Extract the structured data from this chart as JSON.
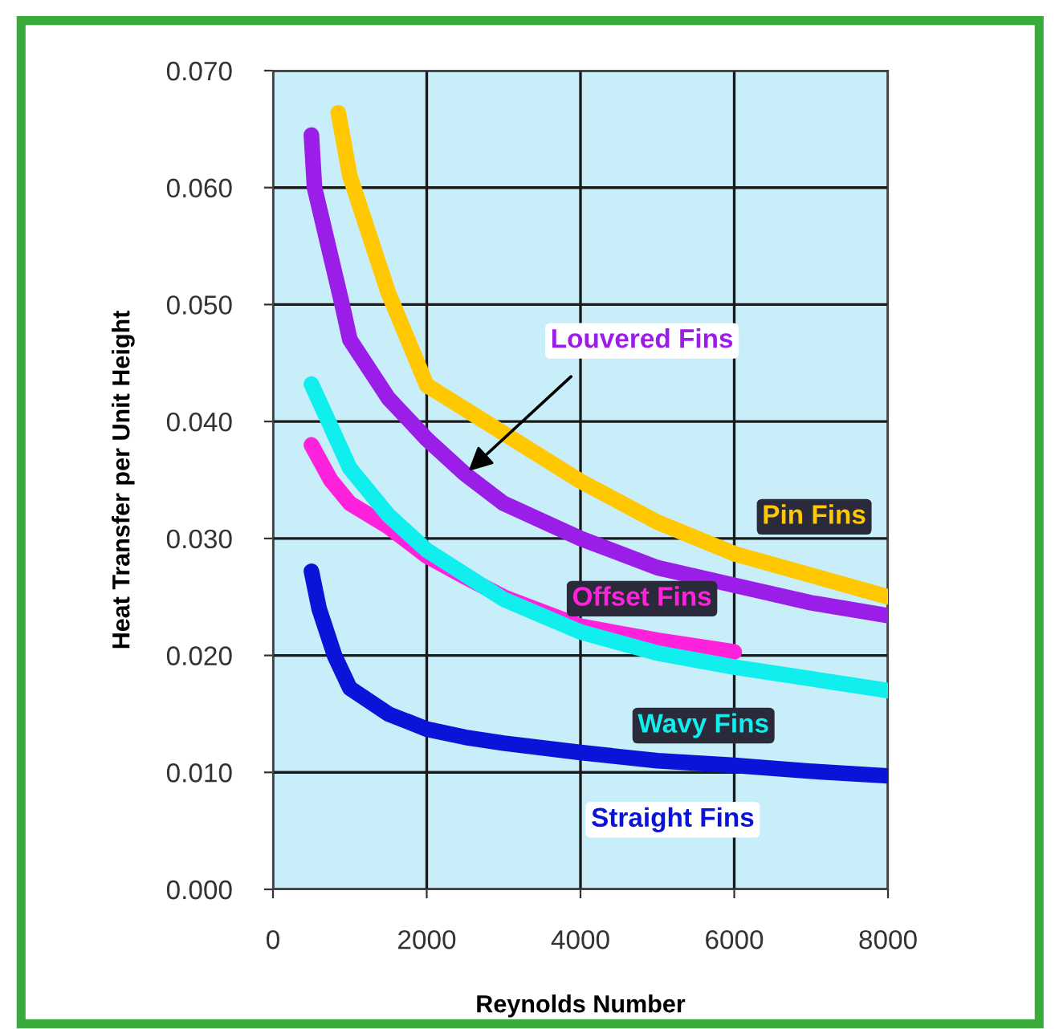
{
  "chart_data": {
    "type": "line",
    "xlabel": "Reynolds Number",
    "ylabel": "Heat Transfer per Unit Height",
    "xlim": [
      0,
      8000
    ],
    "xticks": [
      0,
      2000,
      4000,
      6000,
      8000
    ],
    "ylim": [
      0,
      0.07
    ],
    "yticks": [
      {
        "value": 0,
        "label": "0.000"
      },
      {
        "value": 0.01,
        "label": "0.010"
      },
      {
        "value": 0.02,
        "label": "0.020"
      },
      {
        "value": 0.03,
        "label": "0.030"
      },
      {
        "value": 0.04,
        "label": "0.040"
      },
      {
        "value": 0.05,
        "label": "0.050"
      },
      {
        "value": 0.06,
        "label": "0.060"
      },
      {
        "value": 0.07,
        "label": "0.070"
      }
    ],
    "grid": true,
    "legend": false,
    "series": [
      {
        "name": "Pin Fins",
        "color": "#ffc800",
        "x": [
          850,
          1000,
          1500,
          2000,
          3000,
          4000,
          5000,
          6000,
          8000
        ],
        "values": [
          0.0664,
          0.061,
          0.051,
          0.0431,
          0.039,
          0.0349,
          0.0314,
          0.0287,
          0.025
        ]
      },
      {
        "name": "Louvered Fins",
        "color": "#9a1ee8",
        "x": [
          500,
          540,
          900,
          1000,
          1500,
          2000,
          2500,
          3000,
          4000,
          5000,
          6000,
          7000,
          8000
        ],
        "values": [
          0.0645,
          0.06,
          0.05,
          0.047,
          0.042,
          0.0385,
          0.0355,
          0.033,
          0.03,
          0.0275,
          0.026,
          0.0245,
          0.0234
        ]
      },
      {
        "name": "Offset Fins",
        "color": "#ff22dd",
        "x": [
          500,
          750,
          1000,
          1500,
          2000,
          2500,
          3000,
          4000,
          5000,
          6000
        ],
        "values": [
          0.038,
          0.035,
          0.033,
          0.031,
          0.0285,
          0.0267,
          0.025,
          0.0225,
          0.0213,
          0.0203
        ]
      },
      {
        "name": "Wavy Fins",
        "color": "#11eeee",
        "x": [
          500,
          1000,
          1500,
          2000,
          3000,
          4000,
          5000,
          6000,
          7000,
          8000
        ],
        "values": [
          0.0432,
          0.036,
          0.032,
          0.029,
          0.0248,
          0.022,
          0.0202,
          0.019,
          0.018,
          0.017
        ]
      },
      {
        "name": "Straight Fins",
        "color": "#0a14d8",
        "x": [
          500,
          600,
          800,
          1000,
          1500,
          2000,
          2500,
          3000,
          4000,
          5000,
          6000,
          7000,
          8000
        ],
        "values": [
          0.0272,
          0.024,
          0.02,
          0.0172,
          0.015,
          0.0137,
          0.013,
          0.0125,
          0.0117,
          0.011,
          0.0106,
          0.0101,
          0.0097
        ]
      }
    ]
  }
}
